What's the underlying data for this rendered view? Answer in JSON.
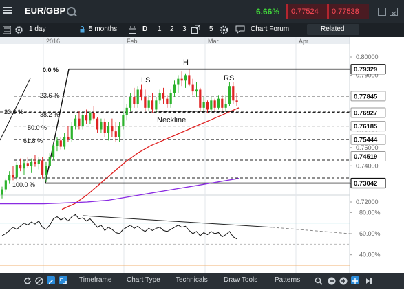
{
  "header": {
    "symbol": "EUR/GBP",
    "change": "6.66%",
    "sell_price": "0.77524",
    "buy_price": "0.77538"
  },
  "toolbar": {
    "interval": "1 day",
    "range": "5 months",
    "draw_letter": "D",
    "buttons": [
      "1",
      "2",
      "3",
      "5"
    ],
    "chart_forum": "Chart Forum",
    "related": "Related"
  },
  "xaxis": {
    "labels": [
      "2016",
      "Feb",
      "Mar",
      "Apr"
    ]
  },
  "price_axis": {
    "ticks": [
      "0.80000",
      "0.79000",
      "0.78000",
      "0.77000",
      "0.76000",
      "0.75000",
      "0.74000",
      "0.73000",
      "0.72000"
    ]
  },
  "price_tags": [
    {
      "value": "0.79329",
      "style": "dark"
    },
    {
      "value": "0.77845",
      "style": "light"
    },
    {
      "value": "0.76927",
      "style": "light"
    },
    {
      "value": "0.76185",
      "style": "light"
    },
    {
      "value": "0.75444",
      "style": "light"
    },
    {
      "value": "0.74519",
      "style": "light"
    },
    {
      "value": "0.73042",
      "style": "dark"
    }
  ],
  "fib_labels": [
    "0.0 %",
    "23.6 %",
    "38.2 %",
    "50.0 %",
    "61.8 %",
    "100.0 %",
    "23.6 %"
  ],
  "annotations": {
    "head": "H",
    "left_shoulder": "LS",
    "right_shoulder": "RS",
    "neckline": "Neckline"
  },
  "rsi_axis": {
    "ticks": [
      "80.00%",
      "60.00%",
      "40.00%"
    ]
  },
  "bottom_menu": {
    "items": [
      "Timeframe",
      "Chart Type",
      "Technicals",
      "Draw Tools",
      "Patterns"
    ]
  },
  "colors": {
    "up": "#2db32d",
    "down": "#e02424",
    "ma_red": "#e02020",
    "ma_purple": "#8a2be2",
    "dark_bar": "#23292f"
  },
  "chart_data": {
    "type": "candlestick",
    "interval": "1 day",
    "ylim": [
      0.72,
      0.8
    ],
    "candles": [
      {
        "o": 0.724,
        "h": 0.7285,
        "l": 0.722,
        "c": 0.727
      },
      {
        "o": 0.727,
        "h": 0.733,
        "l": 0.7255,
        "c": 0.732
      },
      {
        "o": 0.732,
        "h": 0.737,
        "l": 0.73,
        "c": 0.735
      },
      {
        "o": 0.735,
        "h": 0.74,
        "l": 0.732,
        "c": 0.7335
      },
      {
        "o": 0.7335,
        "h": 0.742,
        "l": 0.732,
        "c": 0.7405
      },
      {
        "o": 0.7405,
        "h": 0.744,
        "l": 0.737,
        "c": 0.7385
      },
      {
        "o": 0.7385,
        "h": 0.743,
        "l": 0.735,
        "c": 0.7415
      },
      {
        "o": 0.7415,
        "h": 0.745,
        "l": 0.739,
        "c": 0.74
      },
      {
        "o": 0.74,
        "h": 0.744,
        "l": 0.736,
        "c": 0.742
      },
      {
        "o": 0.742,
        "h": 0.746,
        "l": 0.7395,
        "c": 0.741
      },
      {
        "o": 0.741,
        "h": 0.745,
        "l": 0.738,
        "c": 0.743
      },
      {
        "o": 0.743,
        "h": 0.745,
        "l": 0.733,
        "c": 0.735
      },
      {
        "o": 0.735,
        "h": 0.742,
        "l": 0.731,
        "c": 0.74
      },
      {
        "o": 0.74,
        "h": 0.747,
        "l": 0.738,
        "c": 0.745
      },
      {
        "o": 0.745,
        "h": 0.752,
        "l": 0.743,
        "c": 0.751
      },
      {
        "o": 0.751,
        "h": 0.756,
        "l": 0.748,
        "c": 0.754
      },
      {
        "o": 0.754,
        "h": 0.756,
        "l": 0.749,
        "c": 0.7505
      },
      {
        "o": 0.7505,
        "h": 0.758,
        "l": 0.749,
        "c": 0.756
      },
      {
        "o": 0.756,
        "h": 0.762,
        "l": 0.753,
        "c": 0.7545
      },
      {
        "o": 0.7545,
        "h": 0.764,
        "l": 0.753,
        "c": 0.762
      },
      {
        "o": 0.762,
        "h": 0.768,
        "l": 0.76,
        "c": 0.766
      },
      {
        "o": 0.766,
        "h": 0.77,
        "l": 0.76,
        "c": 0.762
      },
      {
        "o": 0.762,
        "h": 0.77,
        "l": 0.76,
        "c": 0.768
      },
      {
        "o": 0.768,
        "h": 0.771,
        "l": 0.763,
        "c": 0.765
      },
      {
        "o": 0.765,
        "h": 0.77,
        "l": 0.763,
        "c": 0.769
      },
      {
        "o": 0.769,
        "h": 0.773,
        "l": 0.765,
        "c": 0.766
      },
      {
        "o": 0.766,
        "h": 0.767,
        "l": 0.758,
        "c": 0.76
      },
      {
        "o": 0.76,
        "h": 0.766,
        "l": 0.758,
        "c": 0.764
      },
      {
        "o": 0.764,
        "h": 0.766,
        "l": 0.756,
        "c": 0.758
      },
      {
        "o": 0.758,
        "h": 0.764,
        "l": 0.754,
        "c": 0.762
      },
      {
        "o": 0.762,
        "h": 0.766,
        "l": 0.756,
        "c": 0.759
      },
      {
        "o": 0.759,
        "h": 0.764,
        "l": 0.753,
        "c": 0.756
      },
      {
        "o": 0.756,
        "h": 0.764,
        "l": 0.753,
        "c": 0.762
      },
      {
        "o": 0.762,
        "h": 0.77,
        "l": 0.76,
        "c": 0.768
      },
      {
        "o": 0.768,
        "h": 0.774,
        "l": 0.765,
        "c": 0.772
      },
      {
        "o": 0.772,
        "h": 0.78,
        "l": 0.77,
        "c": 0.778
      },
      {
        "o": 0.778,
        "h": 0.783,
        "l": 0.772,
        "c": 0.774
      },
      {
        "o": 0.774,
        "h": 0.784,
        "l": 0.772,
        "c": 0.782
      },
      {
        "o": 0.782,
        "h": 0.785,
        "l": 0.776,
        "c": 0.778
      },
      {
        "o": 0.778,
        "h": 0.782,
        "l": 0.77,
        "c": 0.772
      },
      {
        "o": 0.772,
        "h": 0.779,
        "l": 0.77,
        "c": 0.776
      },
      {
        "o": 0.776,
        "h": 0.78,
        "l": 0.769,
        "c": 0.771
      },
      {
        "o": 0.771,
        "h": 0.778,
        "l": 0.769,
        "c": 0.776
      },
      {
        "o": 0.776,
        "h": 0.782,
        "l": 0.774,
        "c": 0.78
      },
      {
        "o": 0.78,
        "h": 0.783,
        "l": 0.774,
        "c": 0.777
      },
      {
        "o": 0.777,
        "h": 0.779,
        "l": 0.772,
        "c": 0.774
      },
      {
        "o": 0.774,
        "h": 0.782,
        "l": 0.772,
        "c": 0.78
      },
      {
        "o": 0.78,
        "h": 0.787,
        "l": 0.778,
        "c": 0.785
      },
      {
        "o": 0.785,
        "h": 0.79,
        "l": 0.78,
        "c": 0.788
      },
      {
        "o": 0.788,
        "h": 0.792,
        "l": 0.784,
        "c": 0.787
      },
      {
        "o": 0.787,
        "h": 0.791,
        "l": 0.783,
        "c": 0.79
      },
      {
        "o": 0.79,
        "h": 0.793,
        "l": 0.784,
        "c": 0.785
      },
      {
        "o": 0.785,
        "h": 0.788,
        "l": 0.779,
        "c": 0.781
      },
      {
        "o": 0.781,
        "h": 0.786,
        "l": 0.778,
        "c": 0.782
      },
      {
        "o": 0.782,
        "h": 0.783,
        "l": 0.77,
        "c": 0.772
      },
      {
        "o": 0.772,
        "h": 0.778,
        "l": 0.77,
        "c": 0.775
      },
      {
        "o": 0.775,
        "h": 0.776,
        "l": 0.769,
        "c": 0.771
      },
      {
        "o": 0.771,
        "h": 0.778,
        "l": 0.77,
        "c": 0.776
      },
      {
        "o": 0.776,
        "h": 0.777,
        "l": 0.77,
        "c": 0.772
      },
      {
        "o": 0.772,
        "h": 0.779,
        "l": 0.771,
        "c": 0.777
      },
      {
        "o": 0.777,
        "h": 0.779,
        "l": 0.77,
        "c": 0.772
      },
      {
        "o": 0.772,
        "h": 0.779,
        "l": 0.77,
        "c": 0.774
      },
      {
        "o": 0.774,
        "h": 0.786,
        "l": 0.773,
        "c": 0.784
      },
      {
        "o": 0.784,
        "h": 0.786,
        "l": 0.774,
        "c": 0.776
      },
      {
        "o": 0.776,
        "h": 0.78,
        "l": 0.773,
        "c": 0.7752
      }
    ],
    "moving_averages": [
      {
        "color": "red",
        "values": [
          0.716,
          0.719,
          0.724,
          0.73,
          0.736,
          0.742,
          0.747,
          0.751,
          0.754,
          0.757,
          0.76,
          0.763,
          0.766,
          0.769,
          0.772
        ]
      },
      {
        "color": "purple",
        "values": [
          0.719,
          0.719,
          0.719,
          0.7195,
          0.72,
          0.721,
          0.723,
          0.725,
          0.727,
          0.729,
          0.731,
          0.733
        ]
      }
    ],
    "rsi": [
      58,
      60,
      63,
      66,
      64,
      67,
      70,
      68,
      71,
      69,
      72,
      66,
      64,
      68,
      74,
      76,
      73,
      75,
      72,
      76,
      78,
      74,
      75,
      72,
      74,
      70,
      66,
      68,
      63,
      66,
      64,
      61,
      60,
      64,
      66,
      68,
      65,
      67,
      64,
      62,
      65,
      63,
      65,
      66,
      63,
      62,
      64,
      66,
      68,
      66,
      67,
      63,
      60,
      62,
      58,
      61,
      59,
      62,
      60,
      61,
      57,
      59,
      62,
      57,
      55
    ],
    "fibonacci": [
      {
        "label": "0.0 %",
        "price": 0.79329
      },
      {
        "label": "23.6 %",
        "price": 0.77845
      },
      {
        "label": "38.2 %",
        "price": 0.76927
      },
      {
        "label": "50.0 %",
        "price": 0.76185
      },
      {
        "label": "61.8 %",
        "price": 0.75444
      },
      {
        "label": "100.0 %",
        "price": 0.73042
      }
    ]
  }
}
